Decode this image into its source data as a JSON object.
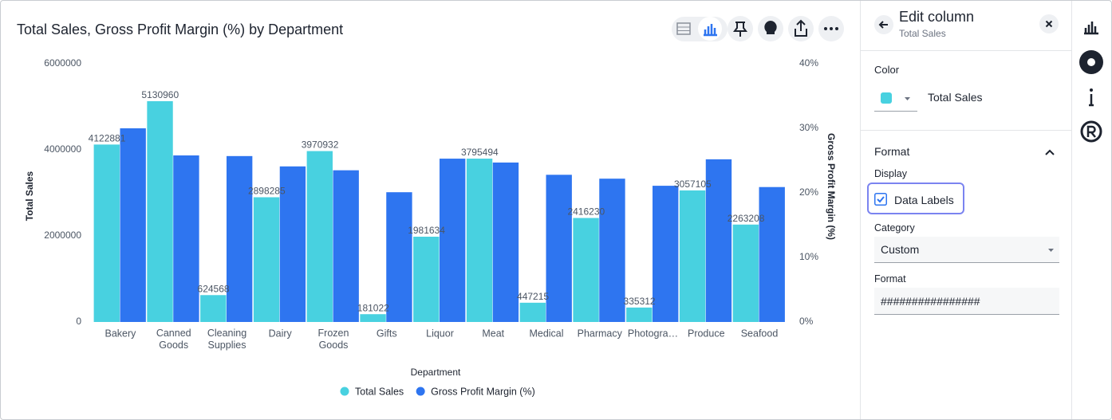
{
  "chart_data": {
    "type": "bar",
    "title": "Total Sales, Gross Profit Margin (%) by Department",
    "x_label": "Department",
    "y_label": "Total Sales",
    "y2_label": "Gross Profit Margin (%)",
    "categories": [
      "Bakery",
      "Canned Goods",
      "Cleaning Supplies",
      "Dairy",
      "Frozen Goods",
      "Gifts",
      "Liquor",
      "Meat",
      "Medical",
      "Pharmacy",
      "Photogra…",
      "Produce",
      "Seafood"
    ],
    "series": [
      {
        "name": "Total Sales",
        "color": "#48d1e0",
        "data_labels": true,
        "values": [
          4122881,
          5130960,
          624568,
          2898285,
          3970932,
          181022,
          1981634,
          3795494,
          447215,
          2416230,
          335312,
          3057105,
          2263208
        ]
      },
      {
        "name": "Gross Profit Margin (%)",
        "color": "#2e75f0",
        "axis": "y2",
        "values": [
          30.0,
          25.8,
          25.7,
          24.1,
          23.5,
          20.1,
          25.3,
          24.7,
          22.8,
          22.2,
          21.1,
          25.2,
          20.9
        ]
      }
    ],
    "ylim": [
      0,
      6000000
    ],
    "yticks": [
      0,
      2000000,
      4000000,
      6000000
    ],
    "y2lim": [
      0,
      40
    ],
    "y2ticks": [
      {
        "value": 0,
        "label": "0%"
      },
      {
        "value": 10,
        "label": "10%"
      },
      {
        "value": 20,
        "label": "20%"
      },
      {
        "value": 30,
        "label": "30%"
      },
      {
        "value": 40,
        "label": "40%"
      }
    ],
    "legend": "bottom"
  },
  "panel": {
    "title": "Edit column",
    "subtitle": "Total Sales",
    "color_label": "Color",
    "swatch_color": "#48d1e0",
    "color_series": "Total Sales",
    "format_title": "Format",
    "display_label": "Display",
    "checkbox_label": "Data Labels",
    "checked": true,
    "category_label": "Category",
    "category_value": "Custom",
    "format_label": "Format",
    "format_value": "################"
  }
}
